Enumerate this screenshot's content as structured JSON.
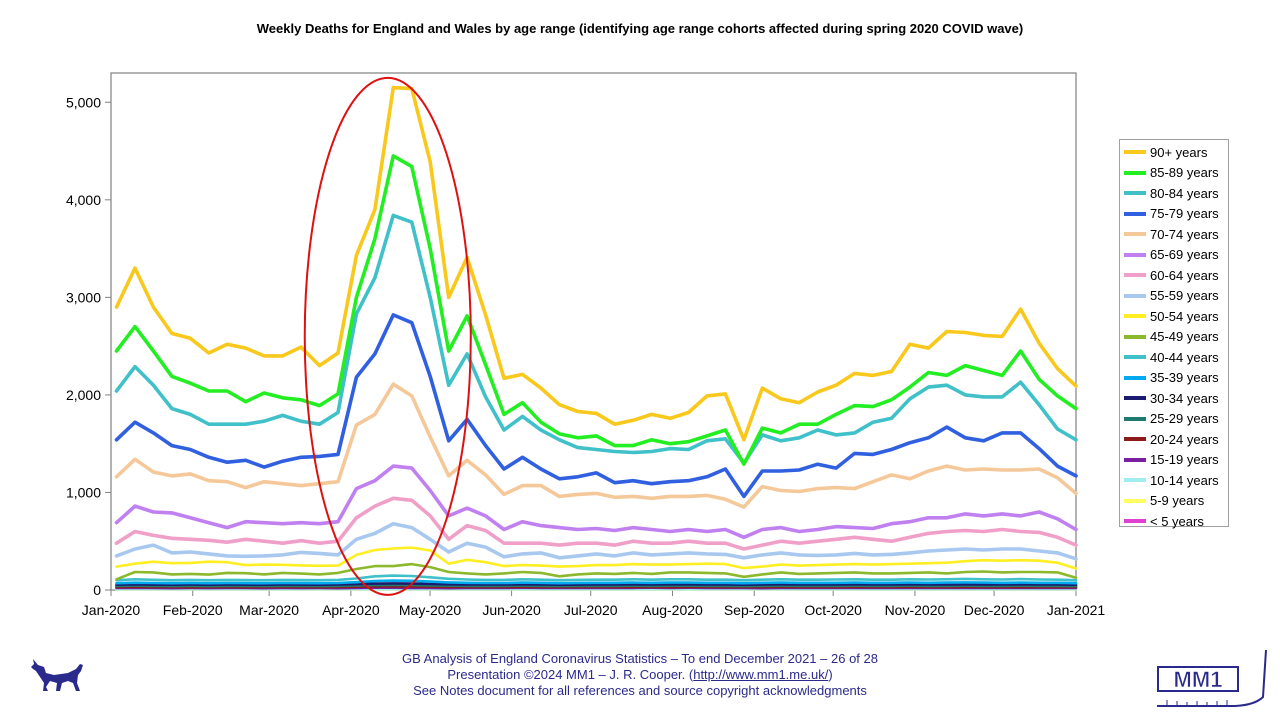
{
  "chart_data": {
    "type": "line",
    "title": "Weekly Deaths for England and Wales by age range (identifying age range cohorts affected during spring 2020 COVID wave)",
    "xlabel": "",
    "ylabel": "",
    "ylim": [
      0,
      5300
    ],
    "yticks": [
      0,
      1000,
      2000,
      3000,
      4000,
      5000
    ],
    "ytick_labels": [
      "0",
      "1,000",
      "2,000",
      "3,000",
      "4,000",
      "5,000"
    ],
    "xrange_weeks": [
      0,
      52.3
    ],
    "xticks": [
      {
        "label": "Jan-2020",
        "week": 0
      },
      {
        "label": "Feb-2020",
        "week": 4.43
      },
      {
        "label": "Mar-2020",
        "week": 8.57
      },
      {
        "label": "Apr-2020",
        "week": 13
      },
      {
        "label": "May-2020",
        "week": 17.29
      },
      {
        "label": "Jun-2020",
        "week": 21.71
      },
      {
        "label": "Jul-2020",
        "week": 26
      },
      {
        "label": "Aug-2020",
        "week": 30.43
      },
      {
        "label": "Sep-2020",
        "week": 34.86
      },
      {
        "label": "Oct-2020",
        "week": 39.14
      },
      {
        "label": "Nov-2020",
        "week": 43.57
      },
      {
        "label": "Dec-2020",
        "week": 47.86
      },
      {
        "label": "Jan-2021",
        "week": 52.3
      }
    ],
    "x_first_week": 0.3,
    "x_step": 1.0,
    "annotation": {
      "type": "ellipse",
      "label": "spring 2020 COVID wave",
      "color": "#dd1111",
      "center_week": 15.0,
      "center_value": 2600,
      "rx_weeks": 4.5,
      "ry_value": 2650
    },
    "series": [
      {
        "name": "< 5 years",
        "color": "#e040d0",
        "values": [
          40,
          40,
          40,
          40,
          40,
          40,
          40,
          40,
          40,
          40,
          40,
          40,
          40,
          40,
          40,
          40,
          40,
          40,
          40,
          40,
          40,
          40,
          40,
          40,
          40,
          40,
          40,
          40,
          40,
          40,
          40,
          40,
          40,
          40,
          40,
          40,
          40,
          40,
          40,
          40,
          40,
          40,
          40,
          40,
          40,
          40,
          40,
          40,
          40,
          40,
          40,
          40,
          40
        ]
      },
      {
        "name": "5-9 years",
        "color": "#ffff60",
        "values": [
          6,
          6,
          6,
          6,
          6,
          6,
          6,
          6,
          6,
          6,
          6,
          6,
          6,
          6,
          6,
          6,
          6,
          6,
          6,
          6,
          6,
          6,
          6,
          6,
          6,
          6,
          6,
          6,
          6,
          6,
          6,
          6,
          6,
          6,
          6,
          6,
          6,
          6,
          6,
          6,
          6,
          6,
          6,
          6,
          6,
          6,
          6,
          6,
          6,
          6,
          6,
          6,
          6
        ]
      },
      {
        "name": "10-14 years",
        "color": "#a0eef0",
        "values": [
          8,
          8,
          8,
          8,
          8,
          8,
          8,
          8,
          8,
          8,
          8,
          8,
          8,
          8,
          8,
          8,
          8,
          8,
          8,
          8,
          8,
          8,
          8,
          8,
          8,
          8,
          8,
          8,
          8,
          8,
          8,
          8,
          8,
          8,
          8,
          8,
          8,
          8,
          8,
          8,
          8,
          8,
          8,
          8,
          8,
          8,
          8,
          8,
          8,
          8,
          8,
          8,
          8
        ]
      },
      {
        "name": "15-19 years",
        "color": "#7a1fa0",
        "values": [
          20,
          22,
          20,
          18,
          20,
          19,
          20,
          20,
          18,
          20,
          19,
          20,
          18,
          22,
          24,
          24,
          22,
          20,
          18,
          20,
          22,
          20,
          24,
          22,
          20,
          20,
          22,
          20,
          22,
          24,
          22,
          24,
          22,
          20,
          20,
          18,
          22,
          20,
          20,
          20,
          22,
          20,
          22,
          20,
          22,
          20,
          20,
          22,
          20,
          20,
          22,
          20,
          20
        ]
      },
      {
        "name": "20-24 years",
        "color": "#8b1a1a",
        "values": [
          30,
          32,
          30,
          30,
          28,
          30,
          30,
          28,
          30,
          30,
          30,
          28,
          30,
          34,
          36,
          36,
          36,
          34,
          32,
          30,
          30,
          30,
          32,
          30,
          30,
          30,
          32,
          30,
          32,
          30,
          30,
          32,
          32,
          30,
          30,
          30,
          32,
          30,
          30,
          30,
          32,
          30,
          30,
          32,
          30,
          30,
          32,
          30,
          30,
          30,
          30,
          30,
          30
        ]
      },
      {
        "name": "25-29 years",
        "color": "#1f7a70",
        "values": [
          42,
          44,
          42,
          40,
          42,
          40,
          42,
          42,
          40,
          42,
          42,
          40,
          42,
          46,
          50,
          52,
          50,
          46,
          44,
          42,
          42,
          42,
          44,
          42,
          40,
          42,
          42,
          42,
          44,
          42,
          44,
          44,
          42,
          42,
          40,
          42,
          44,
          42,
          42,
          42,
          44,
          42,
          42,
          44,
          42,
          42,
          44,
          42,
          42,
          44,
          42,
          42,
          40
        ]
      },
      {
        "name": "30-34 years",
        "color": "#1a1a6e",
        "values": [
          55,
          58,
          55,
          54,
          56,
          54,
          56,
          55,
          54,
          56,
          55,
          54,
          56,
          60,
          66,
          68,
          66,
          62,
          58,
          56,
          56,
          56,
          58,
          56,
          54,
          55,
          56,
          56,
          58,
          56,
          58,
          58,
          56,
          56,
          54,
          56,
          58,
          56,
          56,
          56,
          58,
          56,
          56,
          58,
          56,
          56,
          58,
          56,
          56,
          58,
          56,
          56,
          54
        ]
      },
      {
        "name": "35-39 years",
        "color": "#00aaee",
        "values": [
          70,
          75,
          72,
          70,
          72,
          70,
          72,
          71,
          70,
          72,
          71,
          70,
          72,
          80,
          92,
          96,
          94,
          86,
          78,
          74,
          72,
          72,
          76,
          74,
          70,
          72,
          74,
          74,
          76,
          74,
          76,
          76,
          74,
          74,
          70,
          74,
          76,
          74,
          74,
          74,
          76,
          74,
          74,
          76,
          74,
          76,
          78,
          76,
          74,
          76,
          74,
          74,
          70
        ]
      },
      {
        "name": "40-44 years",
        "color": "#40c0c8",
        "values": [
          100,
          110,
          105,
          100,
          104,
          100,
          104,
          102,
          100,
          104,
          102,
          100,
          104,
          118,
          140,
          148,
          144,
          130,
          115,
          108,
          104,
          104,
          110,
          106,
          100,
          104,
          106,
          106,
          110,
          106,
          110,
          110,
          106,
          106,
          100,
          106,
          110,
          106,
          106,
          108,
          110,
          106,
          106,
          110,
          108,
          110,
          114,
          110,
          108,
          112,
          108,
          106,
          100
        ]
      },
      {
        "name": "45-49 years",
        "color": "#8cb82c",
        "values": [
          110,
          185,
          180,
          160,
          165,
          158,
          175,
          172,
          160,
          175,
          168,
          160,
          175,
          215,
          245,
          245,
          265,
          235,
          185,
          170,
          160,
          170,
          185,
          175,
          140,
          160,
          170,
          165,
          175,
          165,
          180,
          180,
          175,
          170,
          135,
          160,
          180,
          165,
          170,
          175,
          180,
          170,
          170,
          175,
          180,
          170,
          185,
          190,
          180,
          185,
          185,
          180,
          125
        ]
      },
      {
        "name": "50-54 years",
        "color": "#ffee22",
        "values": [
          240,
          270,
          290,
          275,
          278,
          290,
          285,
          255,
          260,
          258,
          252,
          248,
          250,
          360,
          410,
          425,
          435,
          405,
          270,
          310,
          285,
          245,
          255,
          250,
          240,
          245,
          255,
          255,
          265,
          260,
          260,
          265,
          270,
          265,
          225,
          240,
          260,
          250,
          255,
          260,
          265,
          260,
          265,
          270,
          275,
          280,
          295,
          305,
          300,
          305,
          300,
          280,
          220
        ]
      },
      {
        "name": "55-59 years",
        "color": "#a8c8f0",
        "values": [
          350,
          420,
          460,
          380,
          390,
          370,
          350,
          345,
          350,
          360,
          385,
          375,
          360,
          520,
          580,
          680,
          640,
          520,
          390,
          480,
          440,
          340,
          370,
          380,
          330,
          350,
          370,
          350,
          380,
          360,
          370,
          380,
          370,
          365,
          330,
          360,
          380,
          360,
          355,
          360,
          375,
          360,
          365,
          380,
          400,
          410,
          420,
          410,
          420,
          420,
          400,
          380,
          320
        ]
      },
      {
        "name": "60-64 years",
        "color": "#f0a0c8",
        "values": [
          480,
          600,
          560,
          530,
          520,
          510,
          490,
          520,
          500,
          480,
          505,
          480,
          500,
          740,
          860,
          940,
          920,
          760,
          520,
          660,
          610,
          480,
          480,
          480,
          460,
          480,
          480,
          460,
          500,
          480,
          480,
          500,
          480,
          480,
          420,
          460,
          500,
          480,
          500,
          520,
          540,
          520,
          500,
          540,
          580,
          600,
          610,
          600,
          620,
          600,
          590,
          540,
          460
        ]
      },
      {
        "name": "65-69 years",
        "color": "#c080f0",
        "values": [
          690,
          860,
          800,
          790,
          740,
          690,
          640,
          700,
          690,
          680,
          690,
          680,
          700,
          1040,
          1120,
          1270,
          1250,
          1020,
          760,
          840,
          760,
          620,
          700,
          660,
          640,
          620,
          630,
          610,
          640,
          620,
          600,
          620,
          600,
          620,
          540,
          620,
          640,
          600,
          620,
          650,
          640,
          630,
          680,
          700,
          740,
          740,
          780,
          760,
          780,
          760,
          800,
          730,
          620
        ]
      },
      {
        "name": "70-74 years",
        "color": "#f5c89a",
        "values": [
          1160,
          1340,
          1210,
          1170,
          1190,
          1120,
          1110,
          1050,
          1110,
          1090,
          1070,
          1090,
          1110,
          1690,
          1800,
          2110,
          1990,
          1570,
          1170,
          1330,
          1180,
          980,
          1070,
          1070,
          960,
          980,
          990,
          950,
          960,
          940,
          960,
          960,
          970,
          930,
          850,
          1060,
          1020,
          1010,
          1040,
          1050,
          1040,
          1110,
          1180,
          1140,
          1220,
          1270,
          1230,
          1240,
          1230,
          1230,
          1240,
          1150,
          990
        ]
      },
      {
        "name": "75-79 years",
        "color": "#3060e0",
        "values": [
          1540,
          1720,
          1610,
          1480,
          1440,
          1360,
          1310,
          1330,
          1260,
          1320,
          1360,
          1370,
          1390,
          2180,
          2420,
          2820,
          2740,
          2190,
          1530,
          1750,
          1480,
          1240,
          1360,
          1240,
          1140,
          1160,
          1200,
          1100,
          1120,
          1090,
          1110,
          1120,
          1160,
          1240,
          960,
          1220,
          1220,
          1230,
          1290,
          1250,
          1400,
          1390,
          1440,
          1510,
          1560,
          1670,
          1560,
          1530,
          1610,
          1610,
          1450,
          1270,
          1170
        ]
      },
      {
        "name": "80-84 years",
        "color": "#40c0c8",
        "values": [
          2040,
          2290,
          2100,
          1860,
          1800,
          1700,
          1700,
          1700,
          1730,
          1790,
          1730,
          1700,
          1820,
          2830,
          3200,
          3840,
          3770,
          3000,
          2100,
          2420,
          1980,
          1640,
          1780,
          1640,
          1540,
          1460,
          1440,
          1420,
          1410,
          1420,
          1450,
          1440,
          1530,
          1550,
          1300,
          1590,
          1530,
          1560,
          1640,
          1590,
          1610,
          1720,
          1760,
          1960,
          2080,
          2100,
          2000,
          1980,
          1980,
          2130,
          1900,
          1650,
          1540
        ]
      },
      {
        "name": "85-89 years",
        "color": "#22ee22",
        "values": [
          2450,
          2700,
          2450,
          2190,
          2120,
          2040,
          2040,
          1930,
          2020,
          1970,
          1950,
          1890,
          2010,
          3000,
          3600,
          4450,
          4340,
          3500,
          2450,
          2810,
          2310,
          1800,
          1920,
          1720,
          1600,
          1560,
          1580,
          1480,
          1480,
          1540,
          1500,
          1520,
          1580,
          1640,
          1290,
          1660,
          1610,
          1700,
          1700,
          1800,
          1890,
          1880,
          1950,
          2080,
          2230,
          2200,
          2300,
          2250,
          2200,
          2450,
          2160,
          1990,
          1860
        ]
      },
      {
        "name": "90+ years",
        "color": "#f8c81c",
        "values": [
          2900,
          3300,
          2900,
          2630,
          2580,
          2430,
          2520,
          2480,
          2400,
          2400,
          2490,
          2300,
          2430,
          3430,
          3900,
          5150,
          5140,
          4390,
          3000,
          3410,
          2820,
          2170,
          2210,
          2070,
          1900,
          1830,
          1810,
          1700,
          1740,
          1800,
          1760,
          1820,
          1990,
          2010,
          1540,
          2070,
          1960,
          1920,
          2030,
          2100,
          2220,
          2200,
          2240,
          2520,
          2480,
          2650,
          2640,
          2610,
          2600,
          2880,
          2530,
          2270,
          2090
        ]
      }
    ]
  },
  "legend_order": [
    "90+ years",
    "85-89 years",
    "80-84 years",
    "75-79 years",
    "70-74 years",
    "65-69 years",
    "60-64 years",
    "55-59 years",
    "50-54 years",
    "45-49 years",
    "40-44 years",
    "35-39 years",
    "30-34 years",
    "25-29 years",
    "20-24 years",
    "15-19 years",
    "10-14 years",
    "5-9 years",
    "< 5 years"
  ],
  "footer": {
    "line1": "GB Analysis of England Coronavirus Statistics – To end December 2021 – 26 of 28",
    "line2_prefix": "Presentation ©2024 MM1 – J. R. Cooper. (",
    "line2_link": "http://www.mm1.me.uk/",
    "line2_suffix": ")",
    "line3": "See Notes document for all references and source copyright acknowledgments"
  },
  "logos": {
    "dog": "dog-logo",
    "brand": "MM1",
    "brand_color": "#2a2a8c"
  }
}
